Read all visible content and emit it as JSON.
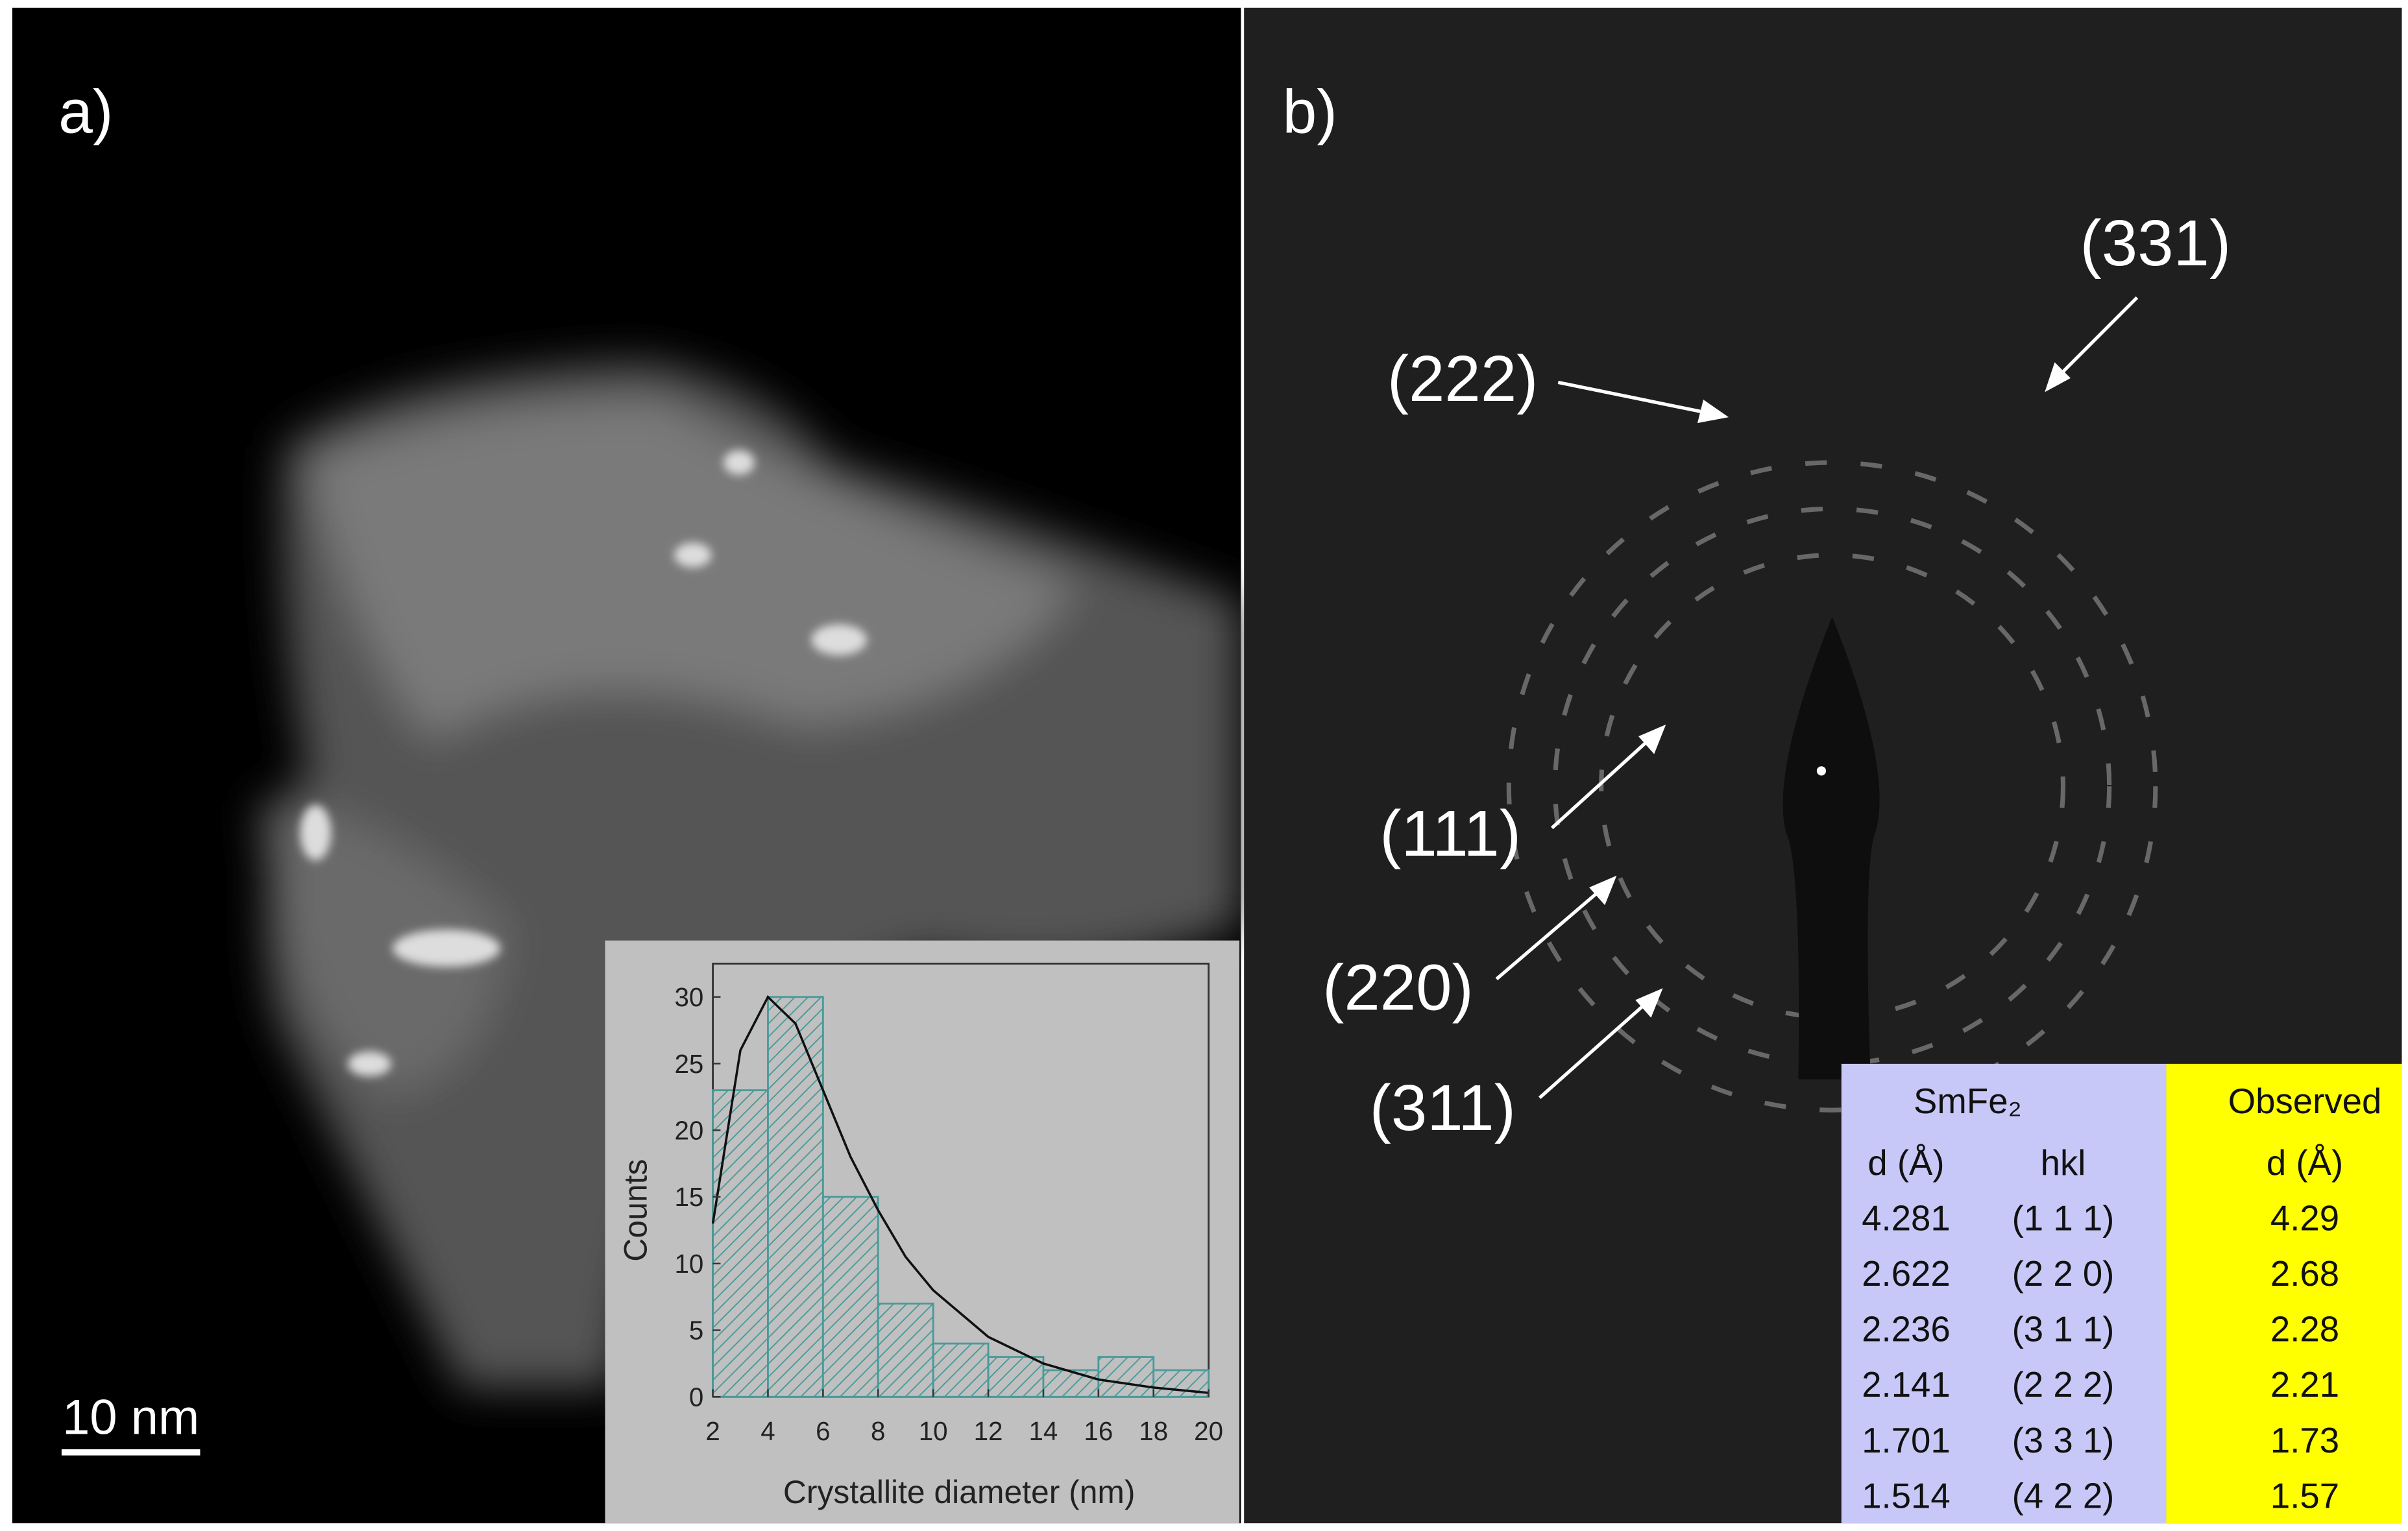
{
  "panel_a": {
    "label": "a)",
    "scale_bar": "10 nm",
    "histogram": {
      "type": "histogram",
      "xlabel": "Crystallite diameter (nm)",
      "ylabel": "Counts",
      "bins": [
        2,
        4,
        6,
        8,
        10,
        12,
        14,
        16,
        18,
        20
      ],
      "values": [
        23,
        30,
        15,
        7,
        4,
        3,
        2,
        3,
        2
      ],
      "fit": {
        "x": [
          2,
          3,
          4,
          5,
          6,
          7,
          8,
          9,
          10,
          12,
          14,
          16,
          18,
          20
        ],
        "values": [
          13,
          26,
          30,
          28,
          23,
          18,
          14,
          10.5,
          8,
          4.5,
          2.5,
          1.3,
          0.7,
          0.3
        ]
      },
      "color": "#4a9a9a",
      "xlim": [
        2,
        20
      ],
      "ylim": [
        0,
        32.5
      ],
      "xticks": [
        2,
        4,
        6,
        8,
        10,
        12,
        14,
        16,
        18,
        20
      ],
      "yticks": [
        0,
        5,
        10,
        15,
        20,
        25,
        30
      ]
    }
  },
  "panel_b": {
    "label": "b)",
    "annotations": [
      "(222)",
      "(331)",
      "(111)",
      "(220)",
      "(311)"
    ],
    "table": {
      "groups": [
        "SmFe₂",
        "Observed"
      ],
      "header": [
        "d (Å)",
        "hkl",
        "d (Å)"
      ],
      "rows": [
        [
          "4.281",
          "(1 1 1)",
          "4.29"
        ],
        [
          "2.622",
          "(2 2 0)",
          "2.68"
        ],
        [
          "2.236",
          "(3 1 1)",
          "2.28"
        ],
        [
          "2.141",
          "(2 2 2)",
          "2.21"
        ],
        [
          "1.701",
          "(3 3 1)",
          "1.73"
        ],
        [
          "1.514",
          "(4 2 2)",
          "1.57"
        ]
      ]
    }
  }
}
